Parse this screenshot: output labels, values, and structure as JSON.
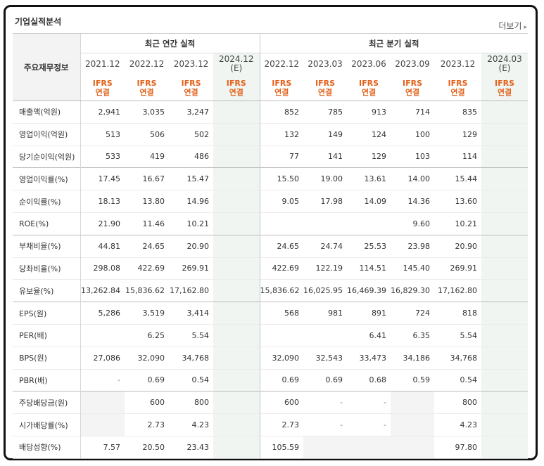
{
  "title": "기업실적분석",
  "more_label": "더보기",
  "table": {
    "row_header": "주요재무정보",
    "annual_label": "최근 연간 실적",
    "quarter_label": "최근 분기 실적",
    "annual_periods": [
      {
        "date": "2021.12",
        "est": ""
      },
      {
        "date": "2022.12",
        "est": ""
      },
      {
        "date": "2023.12",
        "est": ""
      },
      {
        "date": "2024.12",
        "est": "(E)"
      }
    ],
    "quarter_periods": [
      {
        "date": "2022.12",
        "est": ""
      },
      {
        "date": "2023.03",
        "est": ""
      },
      {
        "date": "2023.06",
        "est": ""
      },
      {
        "date": "2023.09",
        "est": ""
      },
      {
        "date": "2023.12",
        "est": ""
      },
      {
        "date": "2024.03",
        "est": "(E)"
      }
    ],
    "basis_top": "IFRS",
    "basis_bottom": "연결",
    "rows": [
      {
        "label": "매출액(억원)",
        "values": [
          "2,941",
          "3,035",
          "3,247",
          "",
          "852",
          "785",
          "913",
          "714",
          "835",
          ""
        ]
      },
      {
        "label": "영업이익(억원)",
        "values": [
          "513",
          "506",
          "502",
          "",
          "132",
          "149",
          "124",
          "100",
          "129",
          ""
        ]
      },
      {
        "label": "당기순이익(억원)",
        "values": [
          "533",
          "419",
          "486",
          "",
          "77",
          "141",
          "129",
          "103",
          "114",
          ""
        ]
      },
      {
        "label": "영업이익률(%)",
        "values": [
          "17.45",
          "16.67",
          "15.47",
          "",
          "15.50",
          "19.00",
          "13.61",
          "14.00",
          "15.44",
          ""
        ]
      },
      {
        "label": "순이익률(%)",
        "values": [
          "18.13",
          "13.80",
          "14.96",
          "",
          "9.05",
          "17.98",
          "14.09",
          "14.36",
          "13.60",
          ""
        ]
      },
      {
        "label": "ROE(%)",
        "values": [
          "21.90",
          "11.46",
          "10.21",
          "",
          "",
          "",
          "",
          "9.60",
          "10.21",
          ""
        ]
      },
      {
        "label": "부채비율(%)",
        "values": [
          "44.81",
          "24.65",
          "20.90",
          "",
          "24.65",
          "24.74",
          "25.53",
          "23.98",
          "20.90",
          ""
        ]
      },
      {
        "label": "당좌비율(%)",
        "values": [
          "298.08",
          "422.69",
          "269.91",
          "",
          "422.69",
          "122.19",
          "114.51",
          "145.40",
          "269.91",
          ""
        ]
      },
      {
        "label": "유보율(%)",
        "values": [
          "13,262.84",
          "15,836.62",
          "17,162.80",
          "",
          "15,836.62",
          "16,025.95",
          "16,469.39",
          "16,829.30",
          "17,162.80",
          ""
        ]
      },
      {
        "label": "EPS(원)",
        "values": [
          "5,286",
          "3,519",
          "3,414",
          "",
          "568",
          "981",
          "891",
          "724",
          "818",
          ""
        ]
      },
      {
        "label": "PER(배)",
        "values": [
          "",
          "6.25",
          "5.54",
          "",
          "",
          "",
          "6.41",
          "6.35",
          "5.54",
          ""
        ]
      },
      {
        "label": "BPS(원)",
        "values": [
          "27,086",
          "32,090",
          "34,768",
          "",
          "32,090",
          "32,543",
          "33,473",
          "34,186",
          "34,768",
          ""
        ]
      },
      {
        "label": "PBR(배)",
        "values": [
          "-",
          "0.69",
          "0.54",
          "",
          "0.69",
          "0.69",
          "0.68",
          "0.59",
          "0.54",
          ""
        ]
      },
      {
        "label": "주당배당금(원)",
        "values": [
          "",
          "600",
          "800",
          "",
          "600",
          "-",
          "-",
          "",
          "800",
          ""
        ]
      },
      {
        "label": "시가배당률(%)",
        "values": [
          "",
          "2.73",
          "4.23",
          "",
          "2.73",
          "-",
          "-",
          "",
          "4.23",
          ""
        ]
      },
      {
        "label": "배당성향(%)",
        "values": [
          "7.57",
          "20.50",
          "23.43",
          "",
          "105.59",
          "",
          "",
          "",
          "97.80",
          ""
        ]
      }
    ]
  }
}
